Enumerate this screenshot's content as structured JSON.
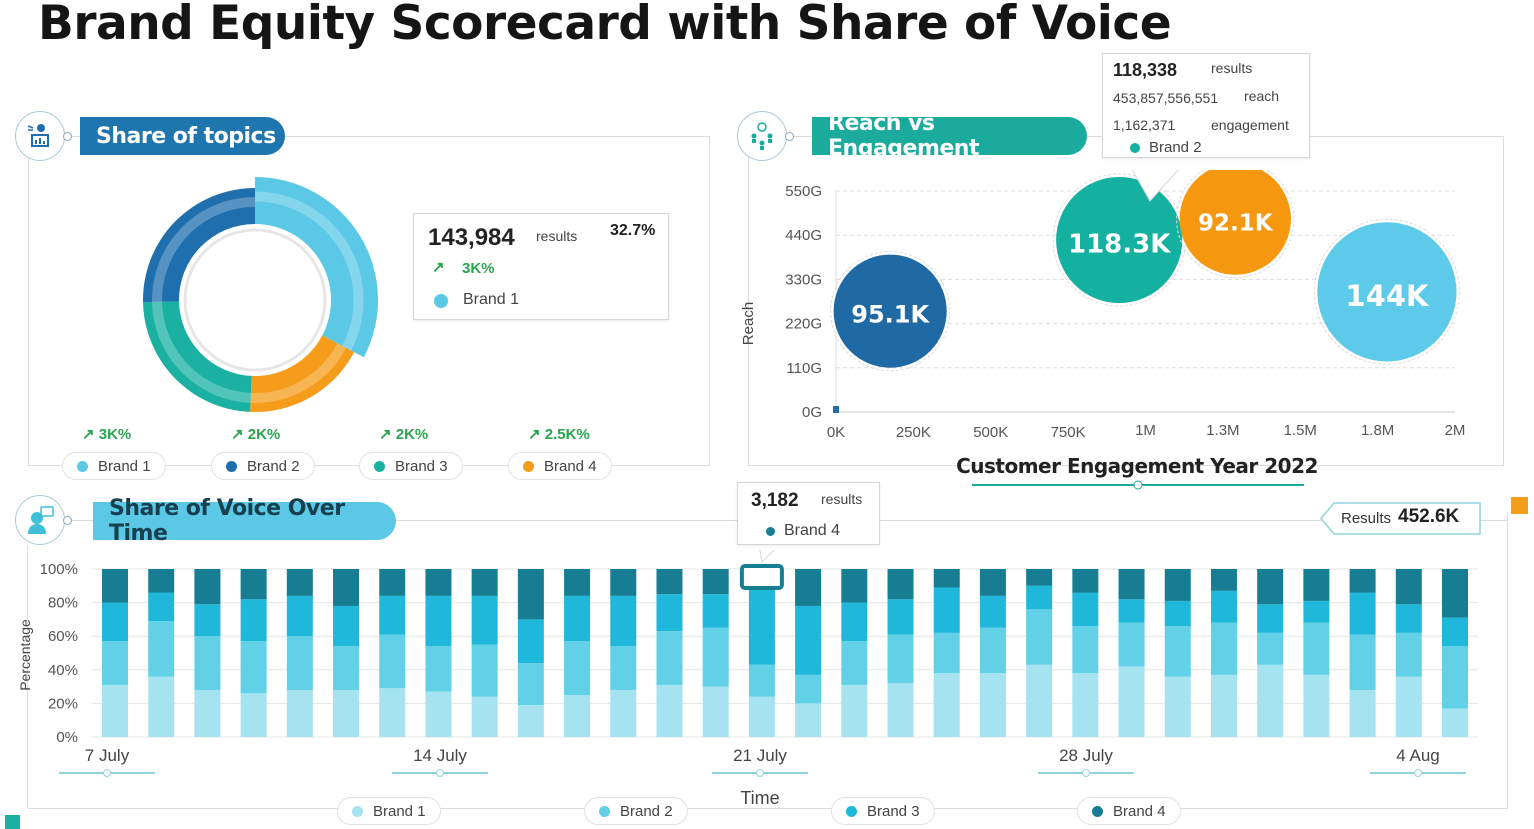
{
  "title": "Brand Equity Scorecard with Share of Voice",
  "colors": {
    "brand1": "#5bc8e6",
    "brand2": "#1f6fae",
    "brand3": "#1ab1a2",
    "brand4": "#f59c1a",
    "sov": [
      "#a6e3f0",
      "#62d0e6",
      "#1fb8da",
      "#177d93"
    ]
  },
  "topics": {
    "header": "Share of topics",
    "icon": "presenter-chart-icon",
    "tooltip": {
      "value": "143,984",
      "unit": "results",
      "percent": "32.7%",
      "trend": "3K%",
      "brand": "Brand 1"
    },
    "legend": [
      {
        "label": "Brand 1",
        "trend": "3K%"
      },
      {
        "label": "Brand 2",
        "trend": "2K%"
      },
      {
        "label": "Brand 3",
        "trend": "2K%"
      },
      {
        "label": "Brand 4",
        "trend": "2.5K%"
      }
    ]
  },
  "reach": {
    "header": "Reach vs Engagement",
    "icon": "network-people-icon",
    "tooltip": {
      "results": "118,338",
      "results_label": "results",
      "reach": "453,857,556,551",
      "reach_label": "reach",
      "engagement": "1,162,371",
      "engagement_label": "engagement",
      "brand": "Brand 2"
    }
  },
  "sov": {
    "header": "Share of Voice Over Time",
    "icon": "speaking-head-icon",
    "tooltip": {
      "value": "3,182",
      "unit": "results",
      "brand": "Brand 4"
    },
    "results_label": "Results",
    "results_value": "452.6K"
  },
  "chart_data": [
    {
      "type": "pie",
      "variant": "donut",
      "categories": [
        "Brand 1",
        "Brand 2",
        "Brand 3",
        "Brand 4"
      ],
      "values": [
        32.7,
        25.3,
        24,
        18
      ],
      "highlighted": "Brand 1"
    },
    {
      "type": "scatter",
      "variant": "bubble",
      "xlabel": "Customer Engagement Year 2022",
      "ylabel": "Reach",
      "xticks": [
        "0K",
        "250K",
        "500K",
        "750K",
        "1M",
        "1.3M",
        "1.5M",
        "1.8M",
        "2M"
      ],
      "xlim": [
        0,
        2000000
      ],
      "yticks": [
        "0G",
        "110G",
        "220G",
        "330G",
        "440G",
        "550G"
      ],
      "ylim": [
        0,
        550
      ],
      "points": [
        {
          "label": "95.1K",
          "x": 175000,
          "y": 251,
          "size": 95.1,
          "color": "#1f6aa5"
        },
        {
          "label": "118.3K",
          "x": 915000,
          "y": 428,
          "size": 118.3,
          "color": "#14b0a0"
        },
        {
          "label": "92.1K",
          "x": 1290000,
          "y": 480,
          "size": 92.1,
          "color": "#f5980f"
        },
        {
          "label": "144K",
          "x": 1780000,
          "y": 299,
          "size": 144,
          "color": "#5ccae8"
        }
      ]
    },
    {
      "type": "bar",
      "variant": "stacked-100",
      "xlabel": "Time",
      "ylabel": "Percentage",
      "yticks": [
        "0%",
        "20%",
        "40%",
        "60%",
        "80%",
        "100%"
      ],
      "ylim": [
        0,
        100
      ],
      "xticks": [
        "7 July",
        "14 July",
        "21 July",
        "28 July",
        "4 Aug"
      ],
      "categories": [
        "7 July",
        "8 July",
        "9 July",
        "10 July",
        "11 July",
        "12 July",
        "13 July",
        "14 July",
        "15 July",
        "16 July",
        "17 July",
        "18 July",
        "19 July",
        "20 July",
        "21 July",
        "22 July",
        "23 July",
        "24 July",
        "25 July",
        "26 July",
        "27 July",
        "28 July",
        "29 July",
        "30 July",
        "31 July",
        "1 Aug",
        "2 Aug",
        "3 Aug",
        "4 Aug",
        "5 Aug"
      ],
      "highlighted": "21 July",
      "series": [
        {
          "name": "Brand 1",
          "values": [
            31,
            36,
            28,
            26,
            28,
            28,
            29,
            27,
            24,
            19,
            25,
            28,
            31,
            30,
            24,
            20,
            31,
            32,
            38,
            38,
            43,
            38,
            42,
            36,
            37,
            43,
            37,
            28,
            36,
            17
          ]
        },
        {
          "name": "Brand 2",
          "values": [
            26,
            33,
            32,
            31,
            32,
            26,
            32,
            27,
            31,
            25,
            32,
            26,
            32,
            35,
            19,
            17,
            26,
            29,
            24,
            27,
            33,
            28,
            26,
            30,
            31,
            19,
            31,
            33,
            26,
            37
          ]
        },
        {
          "name": "Brand 3",
          "values": [
            23,
            17,
            19,
            25,
            24,
            24,
            23,
            30,
            29,
            26,
            27,
            30,
            22,
            20,
            50,
            41,
            23,
            21,
            27,
            19,
            14,
            20,
            14,
            15,
            19,
            17,
            13,
            25,
            17,
            17
          ]
        },
        {
          "name": "Brand 4",
          "values": [
            20,
            14,
            21,
            18,
            16,
            22,
            16,
            16,
            16,
            30,
            16,
            16,
            15,
            15,
            7,
            22,
            20,
            18,
            11,
            16,
            10,
            14,
            18,
            19,
            13,
            21,
            19,
            14,
            21,
            29
          ]
        }
      ]
    }
  ]
}
